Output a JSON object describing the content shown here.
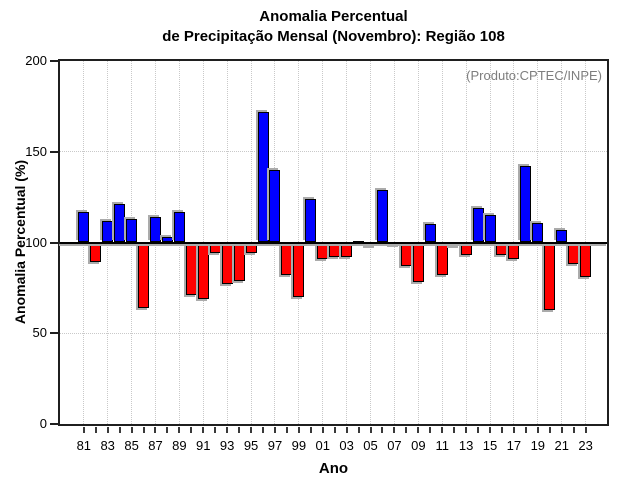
{
  "title": {
    "line1": "Anomalia Percentual",
    "line2": "de Precipitação Mensal (Novembro): Região 108"
  },
  "annotation": "(Produto:CPTEC/INPE)",
  "axes": {
    "y_label": "Anomalia Percentual (%)",
    "x_label": "Ano"
  },
  "colors": {
    "above_baseline": "#0000ff",
    "below_baseline": "#ff0000",
    "baseline": "#000000",
    "grid": "#c9c9c9",
    "annotation": "#7e7e7e",
    "shadow": "#ababab"
  },
  "chart_data": {
    "type": "bar",
    "title": "Anomalia Percentual de Precipitação Mensal (Novembro): Região 108",
    "xlabel": "Ano",
    "ylabel": "Anomalia Percentual (%)",
    "ylim": [
      0,
      200
    ],
    "yticks": [
      0,
      50,
      100,
      150,
      200
    ],
    "grid_y": [
      50,
      150
    ],
    "baseline": 100,
    "grid_style": "dotted",
    "legend_position": "none",
    "years": [
      "1981",
      "1982",
      "1983",
      "1984",
      "1985",
      "1986",
      "1987",
      "1988",
      "1989",
      "1990",
      "1991",
      "1992",
      "1993",
      "1994",
      "1995",
      "1996",
      "1997",
      "1998",
      "1999",
      "2000",
      "2001",
      "2002",
      "2003",
      "2004",
      "2005",
      "2006",
      "2007",
      "2008",
      "2009",
      "2010",
      "2011",
      "2012",
      "2013",
      "2014",
      "2015",
      "2016",
      "2017",
      "2018",
      "2019",
      "2020",
      "2021",
      "2022",
      "2023"
    ],
    "xtick_labels": [
      "81",
      "83",
      "85",
      "87",
      "89",
      "91",
      "93",
      "95",
      "97",
      "99",
      "01",
      "03",
      "05",
      "07",
      "09",
      "11",
      "13",
      "15",
      "17",
      "19",
      "21",
      "23"
    ],
    "values": [
      117,
      89,
      112,
      121,
      113,
      64,
      114,
      103,
      117,
      71,
      69,
      94,
      77,
      79,
      94,
      172,
      140,
      82,
      70,
      124,
      91,
      92,
      92,
      100,
      98,
      129,
      99,
      87,
      78,
      110,
      82,
      98,
      93,
      119,
      115,
      93,
      91,
      142,
      111,
      63,
      107,
      88,
      81
    ]
  }
}
